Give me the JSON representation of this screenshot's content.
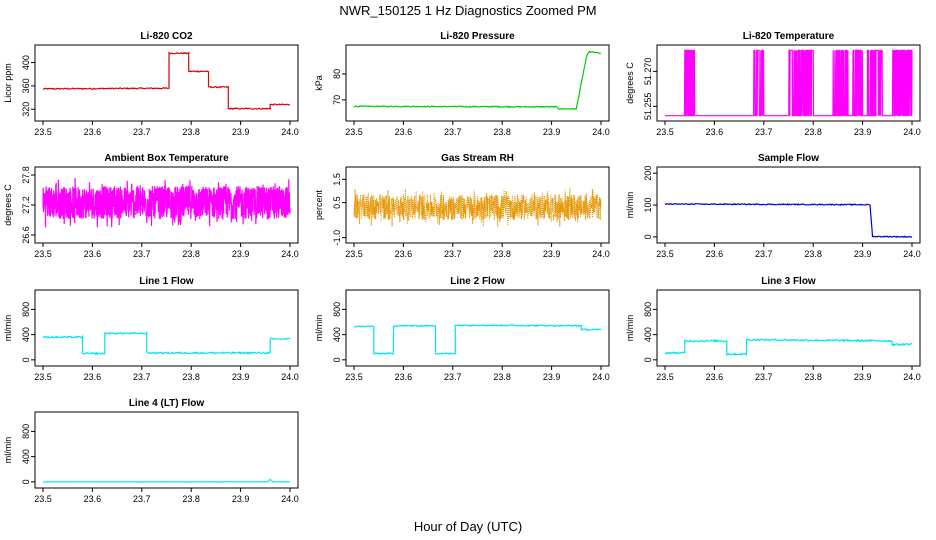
{
  "title": "NWR_150125  1 Hz Diagnostics Zoomed PM",
  "xlabel": "Hour of Day (UTC)",
  "chart_data": [
    {
      "type": "line",
      "title": "Li-820 CO2",
      "ylabel": "Licor ppm",
      "color": "#dd0000",
      "xlim": [
        23.5,
        24.0
      ],
      "ylim": [
        305,
        425
      ],
      "xticks": [
        "23.5",
        "23.6",
        "23.7",
        "23.8",
        "23.9",
        "24.0"
      ],
      "yticks": [
        320,
        360,
        400
      ],
      "step": true,
      "noise": 1,
      "series": [
        {
          "x": [
            23.5,
            23.755,
            23.755,
            23.795,
            23.795,
            23.835,
            23.835,
            23.875,
            23.875,
            23.96,
            23.96,
            24.0
          ],
          "y": [
            355,
            356,
            416,
            416,
            385,
            385,
            358,
            358,
            321,
            321,
            328,
            328
          ]
        }
      ]
    },
    {
      "type": "line",
      "title": "Li-820 Pressure",
      "ylabel": "kPa",
      "color": "#00cc00",
      "xlim": [
        23.5,
        24.0
      ],
      "ylim": [
        63,
        90
      ],
      "xticks": [
        "23.5",
        "23.6",
        "23.7",
        "23.8",
        "23.9",
        "24.0"
      ],
      "yticks": [
        70,
        80
      ],
      "step": false,
      "noise": 0.2,
      "series": [
        {
          "x": [
            23.5,
            23.91,
            23.915,
            23.95,
            23.97,
            23.975,
            24.0
          ],
          "y": [
            67.5,
            67.3,
            66.5,
            66.5,
            86,
            88.5,
            88
          ]
        }
      ]
    },
    {
      "type": "line",
      "title": "Li-820 Temperature",
      "ylabel": "degrees C",
      "color": "#ff00ff",
      "xlim": [
        23.5,
        24.0
      ],
      "ylim": [
        51.25,
        51.28
      ],
      "xticks": [
        "23.5",
        "23.6",
        "23.7",
        "23.8",
        "23.9",
        "24.0"
      ],
      "yticks": [
        "51.255",
        "51.270"
      ],
      "pattern": "toggle",
      "low": 51.251,
      "high": 51.279,
      "toggle_ranges": [
        [
          23.54,
          23.56
        ],
        [
          23.68,
          23.7
        ],
        [
          23.75,
          23.8
        ],
        [
          23.84,
          23.87
        ],
        [
          23.88,
          23.9
        ],
        [
          23.91,
          23.94
        ],
        [
          23.96,
          24.0
        ]
      ]
    },
    {
      "type": "line",
      "title": "Ambient Box Temperature",
      "ylabel": "degrees C",
      "color": "#ff00ff",
      "xlim": [
        23.5,
        24.0
      ],
      "ylim": [
        26.5,
        27.9
      ],
      "xticks": [
        "23.5",
        "23.6",
        "23.7",
        "23.8",
        "23.9",
        "24.0"
      ],
      "yticks": [
        "26.6",
        "27.2",
        "27.8"
      ],
      "pattern": "noise",
      "center": 27.25,
      "spread": 0.33
    },
    {
      "type": "line",
      "title": "Gas Stream RH",
      "ylabel": "percent",
      "color": "#e69500",
      "xlim": [
        23.5,
        24.0
      ],
      "ylim": [
        -1.1,
        1.9
      ],
      "xticks": [
        "23.5",
        "23.6",
        "23.7",
        "23.8",
        "23.9",
        "24.0"
      ],
      "yticks": [
        "-1.0",
        "0.5",
        "1.5"
      ],
      "pattern": "noise",
      "center": 0.3,
      "spread": 0.55,
      "dots": true
    },
    {
      "type": "line",
      "title": "Sample Flow",
      "ylabel": "ml/min",
      "color": "#0000cc",
      "xlim": [
        23.5,
        24.0
      ],
      "ylim": [
        -10,
        210
      ],
      "xticks": [
        "23.5",
        "23.6",
        "23.7",
        "23.8",
        "23.9",
        "24.0"
      ],
      "yticks": [
        0,
        100,
        200
      ],
      "step": false,
      "noise": 1.5,
      "series": [
        {
          "x": [
            23.5,
            23.915,
            23.92,
            24.0
          ],
          "y": [
            103,
            101,
            1,
            0
          ]
        }
      ]
    },
    {
      "type": "line",
      "title": "Line 1 Flow",
      "ylabel": "ml/min",
      "color": "#00e5ee",
      "xlim": [
        23.5,
        24.0
      ],
      "ylim": [
        -50,
        1060
      ],
      "xticks": [
        "23.5",
        "23.6",
        "23.7",
        "23.8",
        "23.9",
        "24.0"
      ],
      "yticks": [
        0,
        400,
        800
      ],
      "step": true,
      "noise": 12,
      "series": [
        {
          "x": [
            23.5,
            23.58,
            23.58,
            23.625,
            23.625,
            23.71,
            23.71,
            23.96,
            23.96,
            24.0
          ],
          "y": [
            360,
            360,
            100,
            100,
            420,
            420,
            110,
            110,
            330,
            330
          ]
        }
      ]
    },
    {
      "type": "line",
      "title": "Line 2 Flow",
      "ylabel": "ml/min",
      "color": "#00e5ee",
      "xlim": [
        23.5,
        24.0
      ],
      "ylim": [
        -50,
        1060
      ],
      "xticks": [
        "23.5",
        "23.6",
        "23.7",
        "23.8",
        "23.9",
        "24.0"
      ],
      "yticks": [
        0,
        400,
        800
      ],
      "step": true,
      "noise": 10,
      "series": [
        {
          "x": [
            23.5,
            23.54,
            23.54,
            23.58,
            23.58,
            23.665,
            23.665,
            23.705,
            23.705,
            23.96,
            23.96,
            24.0
          ],
          "y": [
            530,
            530,
            100,
            100,
            540,
            540,
            100,
            100,
            550,
            540,
            480,
            480
          ]
        }
      ]
    },
    {
      "type": "line",
      "title": "Line 3 Flow",
      "ylabel": "ml/min",
      "color": "#00e5ee",
      "xlim": [
        23.5,
        24.0
      ],
      "ylim": [
        -50,
        1060
      ],
      "xticks": [
        "23.5",
        "23.6",
        "23.7",
        "23.8",
        "23.9",
        "24.0"
      ],
      "yticks": [
        0,
        400,
        800
      ],
      "step": true,
      "noise": 14,
      "series": [
        {
          "x": [
            23.5,
            23.54,
            23.54,
            23.625,
            23.625,
            23.665,
            23.665,
            23.96,
            23.96,
            24.0
          ],
          "y": [
            110,
            110,
            300,
            300,
            90,
            90,
            320,
            300,
            240,
            250
          ]
        }
      ]
    },
    {
      "type": "line",
      "title": "Line 4 (LT) Flow",
      "ylabel": "ml/min",
      "color": "#00e5ee",
      "xlim": [
        23.5,
        24.0
      ],
      "ylim": [
        -50,
        1060
      ],
      "xticks": [
        "23.5",
        "23.6",
        "23.7",
        "23.8",
        "23.9",
        "24.0"
      ],
      "yticks": [
        0,
        400,
        800
      ],
      "step": false,
      "noise": 2,
      "series": [
        {
          "x": [
            23.5,
            23.955,
            23.96,
            23.965,
            24.0
          ],
          "y": [
            0,
            0,
            40,
            0,
            0
          ]
        }
      ]
    }
  ]
}
